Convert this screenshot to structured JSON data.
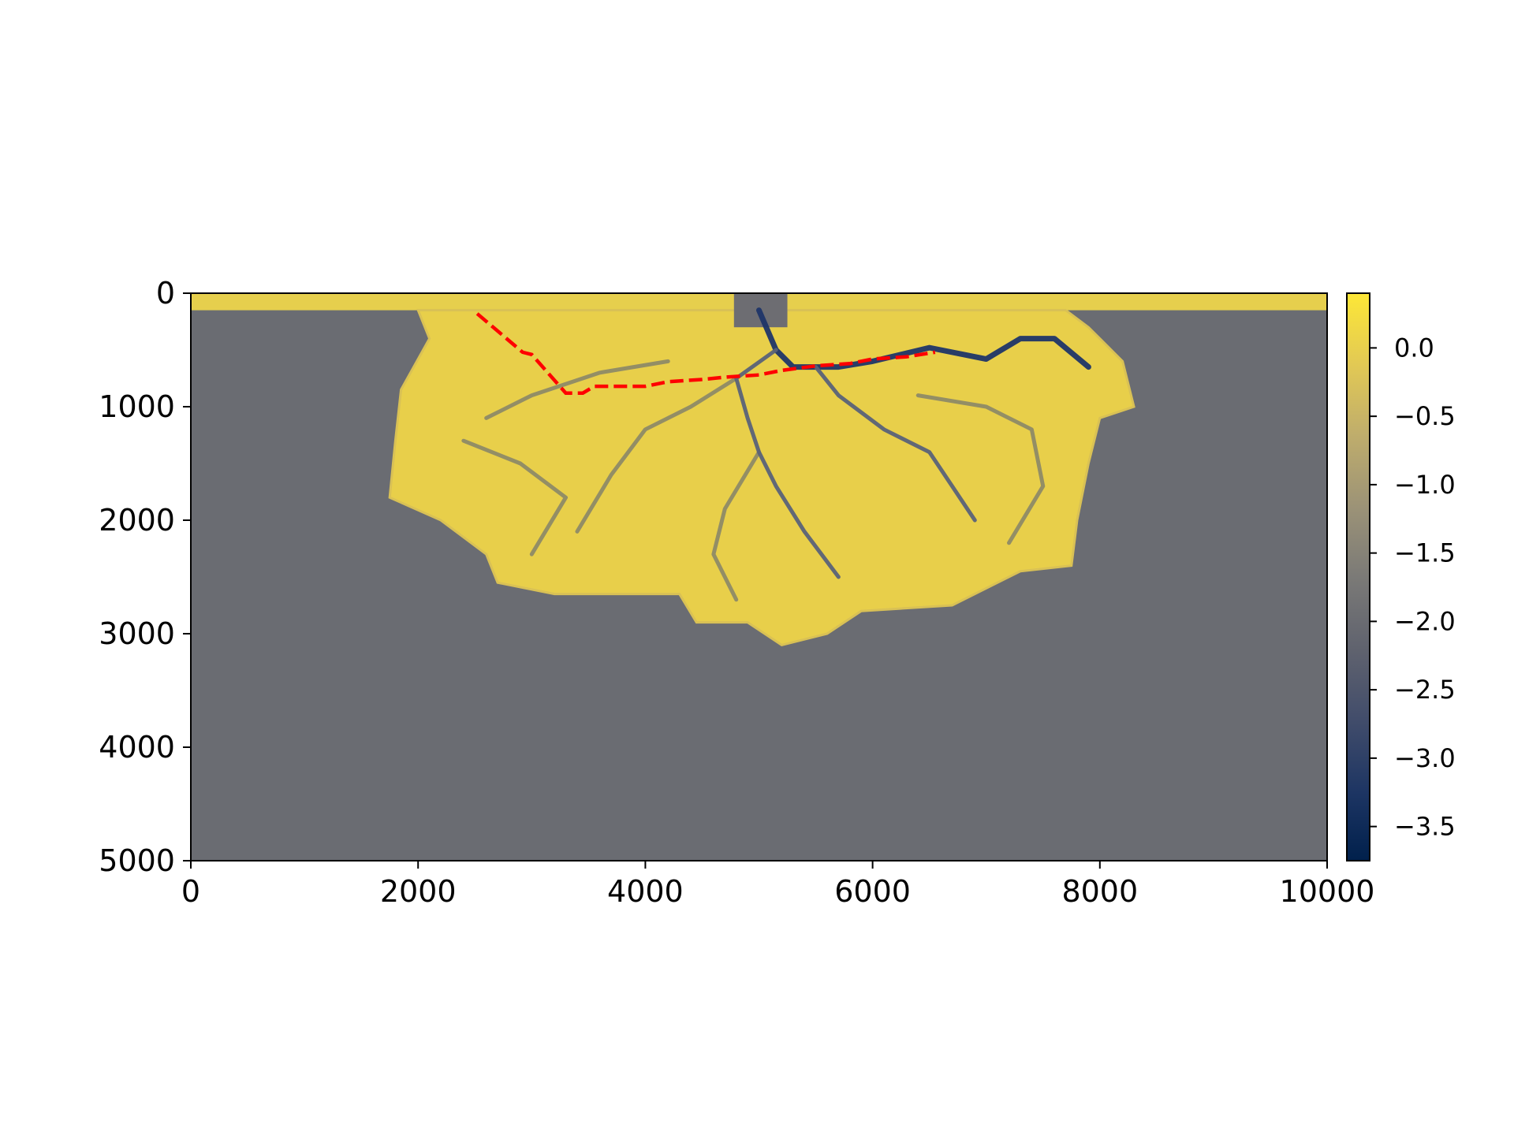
{
  "chart_data": {
    "type": "heatmap",
    "title": "",
    "xlabel": "",
    "ylabel": "",
    "xlim": [
      0,
      10000
    ],
    "ylim": [
      5000,
      0
    ],
    "x_ticks": [
      "0",
      "2000",
      "4000",
      "6000",
      "8000",
      "10000"
    ],
    "y_ticks": [
      "0",
      "1000",
      "2000",
      "3000",
      "4000",
      "5000"
    ],
    "grid": false,
    "legend": "none",
    "colorbar": {
      "colormap": "cividis",
      "range": [
        -3.75,
        0.4
      ],
      "ticks": [
        "0.0",
        "−0.5",
        "−1.0",
        "−1.5",
        "−2.0",
        "−2.5",
        "−3.0",
        "−3.5"
      ],
      "tick_values": [
        0.0,
        -0.5,
        -1.0,
        -1.5,
        -2.0,
        -2.5,
        -3.0,
        -3.5
      ]
    },
    "field": {
      "background_value": -2.0,
      "shelf_value": 0.3,
      "shelf_depth_y": 150,
      "delta_outline": [
        [
          2000,
          150
        ],
        [
          2100,
          400
        ],
        [
          1850,
          850
        ],
        [
          1800,
          1300
        ],
        [
          1750,
          1800
        ],
        [
          2200,
          2000
        ],
        [
          2600,
          2300
        ],
        [
          2700,
          2550
        ],
        [
          3200,
          2650
        ],
        [
          4300,
          2650
        ],
        [
          4450,
          2900
        ],
        [
          4900,
          2900
        ],
        [
          5200,
          3100
        ],
        [
          5600,
          3000
        ],
        [
          5900,
          2800
        ],
        [
          6700,
          2750
        ],
        [
          7300,
          2450
        ],
        [
          7750,
          2400
        ],
        [
          7800,
          2000
        ],
        [
          7900,
          1500
        ],
        [
          8000,
          1100
        ],
        [
          8300,
          1000
        ],
        [
          8200,
          600
        ],
        [
          7900,
          300
        ],
        [
          7700,
          150
        ]
      ],
      "channels": [
        [
          [
            5000,
            150
          ],
          [
            5150,
            500
          ],
          [
            5300,
            650
          ],
          [
            5700,
            650
          ],
          [
            6000,
            600
          ],
          [
            6500,
            480
          ],
          [
            7000,
            580
          ],
          [
            7300,
            400
          ],
          [
            7600,
            400
          ],
          [
            7900,
            650
          ]
        ],
        [
          [
            5150,
            500
          ],
          [
            4800,
            750
          ],
          [
            4900,
            1100
          ],
          [
            5000,
            1400
          ],
          [
            5150,
            1700
          ],
          [
            5400,
            2100
          ],
          [
            5700,
            2500
          ]
        ],
        [
          [
            5500,
            650
          ],
          [
            5700,
            900
          ],
          [
            6100,
            1200
          ],
          [
            6500,
            1400
          ],
          [
            6700,
            1700
          ],
          [
            6900,
            2000
          ]
        ],
        [
          [
            4800,
            750
          ],
          [
            4400,
            1000
          ],
          [
            4000,
            1200
          ],
          [
            3700,
            1600
          ],
          [
            3400,
            2100
          ]
        ],
        [
          [
            5000,
            1400
          ],
          [
            4700,
            1900
          ],
          [
            4600,
            2300
          ],
          [
            4800,
            2700
          ]
        ],
        [
          [
            4200,
            600
          ],
          [
            3600,
            700
          ],
          [
            3000,
            900
          ],
          [
            2600,
            1100
          ]
        ],
        [
          [
            2400,
            1300
          ],
          [
            2900,
            1500
          ],
          [
            3300,
            1800
          ],
          [
            3000,
            2300
          ]
        ],
        [
          [
            6400,
            900
          ],
          [
            7000,
            1000
          ],
          [
            7400,
            1200
          ],
          [
            7500,
            1700
          ],
          [
            7200,
            2200
          ]
        ]
      ]
    },
    "overlay_line": {
      "color": "#ff0000",
      "style": "dashed",
      "points": [
        [
          2520,
          180
        ],
        [
          2920,
          520
        ],
        [
          3000,
          540
        ],
        [
          3300,
          880
        ],
        [
          3450,
          880
        ],
        [
          3550,
          820
        ],
        [
          4000,
          820
        ],
        [
          4200,
          780
        ],
        [
          4500,
          760
        ],
        [
          4700,
          740
        ],
        [
          5000,
          720
        ],
        [
          5200,
          680
        ],
        [
          5500,
          640
        ],
        [
          5800,
          620
        ],
        [
          6000,
          580
        ],
        [
          6300,
          560
        ],
        [
          6550,
          520
        ]
      ]
    }
  },
  "colors": {
    "overlay": "#ff0000",
    "background": "#676a71",
    "axes": "#000000"
  }
}
